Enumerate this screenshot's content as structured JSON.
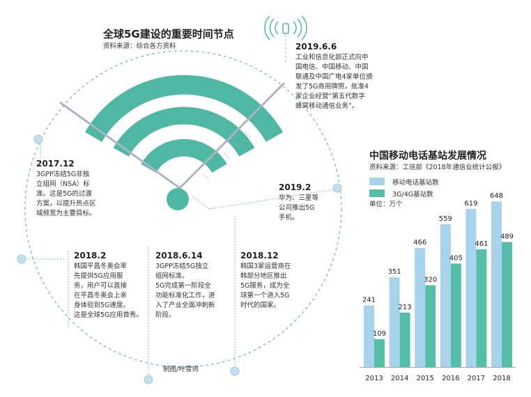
{
  "left": {
    "title": "全球5G建设的重要时间节点",
    "source": "资料来源：综合各方资料",
    "credit": "制图/叶雪鸰",
    "events": [
      {
        "date": "2019.6.6",
        "text": "工业和信息化部正式向中\n国电信、中国移动、中国\n联通及中国广电4家单位颁\n发了5G商用牌照，批准4\n家企业经营“第五代数字\n蜂窝移动通信业务”。"
      },
      {
        "date": "2017.12",
        "text": "3GPP冻结5G非独\n立组网（NSA）标\n准。这是5G的过渡\n方案，以提升热点区\n域频宽为主要目标。"
      },
      {
        "date": "2019.2",
        "text": "华为、三星等\n公司推出5G\n手机。"
      },
      {
        "date": "2018.2",
        "text": "韩国平昌冬奥会率\n先提供5G应用服\n务，用户可以直接\n在平昌冬奥会上亲\n身体验到5G速度。\n这是全球5G应用首秀。"
      },
      {
        "date": "2018.6.14",
        "text": "3GPP冻结5G独立\n组网标准。\n5G完成第一阶段全\n功能标准化工作，进\n入了产业全面冲刺新\n阶段。"
      },
      {
        "date": "2018.12",
        "text": "韩国3家运营商在\n韩部分地区推出\n5G服务，成为全\n球第一个进入5G\n时代的国家。"
      }
    ]
  },
  "colors": {
    "series1": "#a7d3ec",
    "series2": "#55bea8",
    "wifi": "#4fb8a4",
    "circle": "#7eb6cc",
    "dot": "#c4dfec"
  },
  "chart_data": {
    "type": "bar",
    "title": "中国移动电话基站发展情况",
    "source": "资料来源：工信部《2018年通信业统计公报》",
    "unit_label": "单位：万个",
    "categories": [
      "2013",
      "2014",
      "2015",
      "2016",
      "2017",
      "2018"
    ],
    "series": [
      {
        "name": "移动电话基站数",
        "values": [
          241,
          351,
          466,
          559,
          619,
          648
        ]
      },
      {
        "name": "3G/4G基站数",
        "values": [
          109,
          213,
          320,
          405,
          461,
          489
        ]
      }
    ],
    "ylim": [
      0,
      700
    ],
    "legend": "top-left",
    "grid": false
  }
}
